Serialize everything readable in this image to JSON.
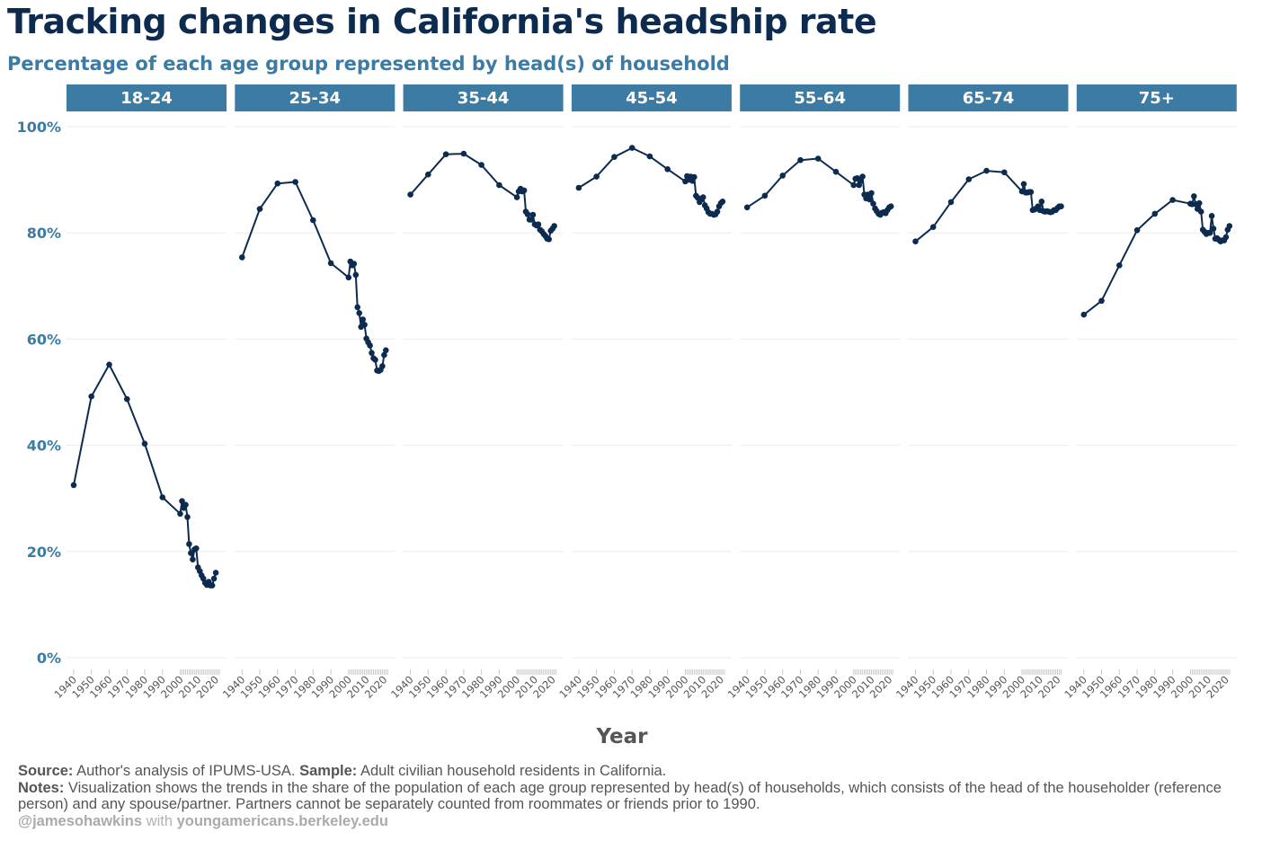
{
  "title": "Tracking changes in California's headship rate",
  "subtitle": "Percentage of each age group represented by head(s) of household",
  "chart_data": {
    "type": "line",
    "facets": [
      "18-24",
      "25-34",
      "35-44",
      "45-54",
      "55-64",
      "65-74",
      "75+"
    ],
    "xlabel": "Year",
    "ylabel": "",
    "ylim": [
      0,
      100
    ],
    "yticks": [
      "0%",
      "20%",
      "40%",
      "60%",
      "80%",
      "100%"
    ],
    "ytick_values": [
      0,
      20,
      40,
      60,
      80,
      100
    ],
    "xticks": [
      "1940",
      "1950",
      "1960",
      "1970",
      "1980",
      "1990",
      "2000",
      "2010",
      "2020"
    ],
    "xtick_values": [
      1940,
      1950,
      1960,
      1970,
      1980,
      1990,
      2000,
      2010,
      2020
    ],
    "xlim": [
      1939,
      2023
    ],
    "x": [
      1940,
      1950,
      1960,
      1970,
      1980,
      1990,
      2000,
      2001,
      2002,
      2003,
      2004,
      2005,
      2006,
      2007,
      2008,
      2009,
      2010,
      2011,
      2012,
      2013,
      2014,
      2015,
      2016,
      2017,
      2018,
      2019,
      2020,
      2021,
      2022
    ],
    "line_color": "#0d2b4f",
    "grid": true,
    "series": [
      {
        "values": [
          32.5,
          49.2,
          55.2,
          48.7,
          40.3,
          30.2,
          27.1,
          29.5,
          28.2,
          28.8,
          26.5,
          21.4,
          19.7,
          18.5,
          20.4,
          20.6,
          17.0,
          16.3,
          15.5,
          14.9,
          14.1,
          13.7,
          14.3,
          13.6,
          13.6,
          14.9,
          16.0,
          null,
          null
        ]
      },
      {
        "values": [
          75.4,
          84.5,
          89.3,
          89.6,
          82.4,
          74.3,
          71.6,
          74.6,
          73.9,
          74.2,
          72.1,
          66.0,
          64.9,
          62.3,
          63.7,
          62.7,
          60.1,
          59.4,
          58.8,
          57.4,
          56.4,
          56.1,
          54.1,
          54.0,
          54.2,
          54.9,
          57.0,
          57.9,
          null
        ]
      },
      {
        "values": [
          87.2,
          91.0,
          94.8,
          94.9,
          92.8,
          89.0,
          86.7,
          87.8,
          88.3,
          87.8,
          88.0,
          84.0,
          83.5,
          82.5,
          82.5,
          83.4,
          81.6,
          81.4,
          81.6,
          80.6,
          80.3,
          79.8,
          79.4,
          78.9,
          78.8,
          80.4,
          80.8,
          81.3,
          null
        ]
      },
      {
        "values": [
          88.5,
          90.6,
          94.3,
          96.0,
          94.4,
          92.0,
          89.7,
          90.7,
          90.0,
          90.6,
          89.8,
          90.5,
          87.0,
          86.6,
          85.8,
          86.3,
          86.7,
          85.2,
          84.6,
          83.9,
          83.6,
          83.6,
          83.4,
          83.5,
          84.0,
          85.0,
          85.6,
          85.9,
          null
        ]
      },
      {
        "values": [
          84.8,
          87.0,
          90.8,
          93.7,
          94.0,
          91.5,
          89.0,
          90.2,
          90.3,
          89.0,
          89.8,
          90.6,
          87.2,
          86.5,
          87.2,
          86.3,
          87.5,
          85.5,
          84.6,
          84.1,
          83.6,
          83.4,
          83.8,
          83.9,
          83.7,
          84.3,
          84.8,
          85.0,
          null
        ]
      },
      {
        "values": [
          78.4,
          81.1,
          85.8,
          90.1,
          91.7,
          91.4,
          87.8,
          89.2,
          87.6,
          87.6,
          87.7,
          87.7,
          84.3,
          84.4,
          84.6,
          85.0,
          84.3,
          85.9,
          84.1,
          84.0,
          84.1,
          84.0,
          83.9,
          84.0,
          84.3,
          84.3,
          84.7,
          85.0,
          85.0
        ]
      },
      {
        "values": [
          64.6,
          67.2,
          73.9,
          80.5,
          83.6,
          86.2,
          85.5,
          85.4,
          86.9,
          85.4,
          84.5,
          85.6,
          84.0,
          80.6,
          80.2,
          79.8,
          80.0,
          80.0,
          83.2,
          80.8,
          78.9,
          79.0,
          78.7,
          78.4,
          78.6,
          78.6,
          79.2,
          80.6,
          81.3
        ]
      }
    ]
  },
  "caption": {
    "source_label": "Source:",
    "source_text": " Author's analysis of IPUMS-USA. ",
    "sample_label": "Sample:",
    "sample_text": " Adult civilian household residents in California.",
    "notes_label": "Notes:",
    "notes_text": " Visualization shows the trends in the share of the population of each age group represented by head(s) of households, which consists of the head of the householder (reference person) and any spouse/partner. Partners cannot be separately counted from roommates or friends prior to 1990.",
    "handle": "@jamesohawkins",
    "with_text": " with ",
    "site": "youngamericans.berkeley.edu"
  }
}
